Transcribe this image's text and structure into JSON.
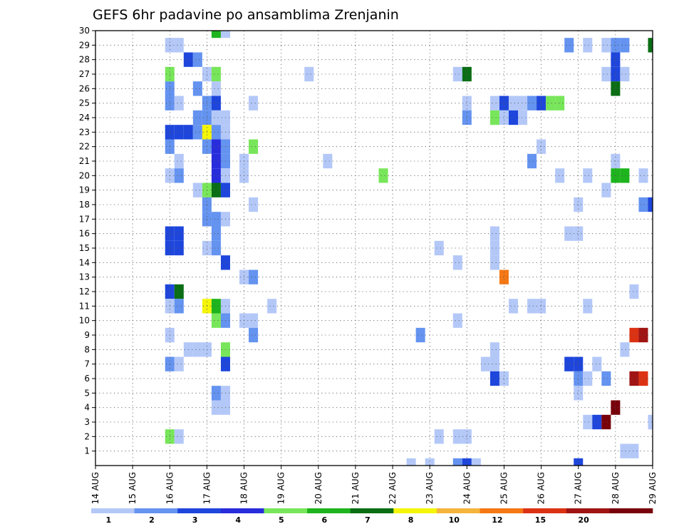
{
  "chart_data": {
    "type": "heatmap",
    "title": "GEFS 6hr padavine po ansamblima Zrenjanin",
    "x_ticks": [
      "14 AUG",
      "15 AUG",
      "16 AUG",
      "17 AUG",
      "18 AUG",
      "19 AUG",
      "20 AUG",
      "21 AUG",
      "22 AUG",
      "23 AUG",
      "24 AUG",
      "25 AUG",
      "26 AUG",
      "27 AUG",
      "28 AUG",
      "29 AUG"
    ],
    "xlim": [
      "14 AUG",
      "29 AUG"
    ],
    "y_ticks": [
      "1",
      "2",
      "3",
      "4",
      "5",
      "6",
      "7",
      "8",
      "9",
      "10",
      "11",
      "12",
      "13",
      "14",
      "15",
      "16",
      "17",
      "18",
      "19",
      "20",
      "21",
      "22",
      "23",
      "24",
      "25",
      "26",
      "27",
      "28",
      "29",
      "30"
    ],
    "ylim": [
      0,
      30
    ],
    "grid": true,
    "colorbar": {
      "labels": [
        "1",
        "2",
        "3",
        "4",
        "5",
        "6",
        "7",
        "8",
        "10",
        "12",
        "15",
        "20"
      ],
      "colors": [
        "#b4c8f8",
        "#6493f0",
        "#1e46dc",
        "#282ddc",
        "#78e65a",
        "#1eb41e",
        "#0a6e14",
        "#f5f50a",
        "#f5b43c",
        "#f57814",
        "#dc3214",
        "#a01414",
        "#78000a"
      ]
    },
    "cells": [
      {
        "x": "16 AUG 00Z",
        "m": 29,
        "lvl": 0
      },
      {
        "x": "16 AUG 06Z",
        "m": 29,
        "lvl": 0
      },
      {
        "x": "16 AUG 12Z",
        "m": 28,
        "lvl": 2
      },
      {
        "x": "16 AUG 18Z",
        "m": 28,
        "lvl": 1
      },
      {
        "x": "16 AUG 00Z",
        "m": 27,
        "lvl": 4
      },
      {
        "x": "16 AUG 00Z",
        "m": 26,
        "lvl": 1
      },
      {
        "x": "16 AUG 18Z",
        "m": 26,
        "lvl": 1
      },
      {
        "x": "16 AUG 00Z",
        "m": 25,
        "lvl": 1
      },
      {
        "x": "16 AUG 06Z",
        "m": 25,
        "lvl": 0
      },
      {
        "x": "16 AUG 00Z",
        "m": 23,
        "lvl": 2
      },
      {
        "x": "16 AUG 06Z",
        "m": 23,
        "lvl": 2
      },
      {
        "x": "16 AUG 12Z",
        "m": 23,
        "lvl": 2
      },
      {
        "x": "16 AUG 18Z",
        "m": 23,
        "lvl": 1
      },
      {
        "x": "16 AUG 00Z",
        "m": 22,
        "lvl": 1
      },
      {
        "x": "16 AUG 06Z",
        "m": 21,
        "lvl": 0
      },
      {
        "x": "16 AUG 00Z",
        "m": 20,
        "lvl": 0
      },
      {
        "x": "16 AUG 06Z",
        "m": 20,
        "lvl": 1
      },
      {
        "x": "16 AUG 00Z",
        "m": 16,
        "lvl": 2
      },
      {
        "x": "16 AUG 06Z",
        "m": 16,
        "lvl": 2
      },
      {
        "x": "16 AUG 00Z",
        "m": 15,
        "lvl": 2
      },
      {
        "x": "16 AUG 06Z",
        "m": 15,
        "lvl": 2
      },
      {
        "x": "16 AUG 00Z",
        "m": 12,
        "lvl": 2
      },
      {
        "x": "16 AUG 06Z",
        "m": 12,
        "lvl": 6
      },
      {
        "x": "16 AUG 00Z",
        "m": 11,
        "lvl": 0
      },
      {
        "x": "16 AUG 06Z",
        "m": 11,
        "lvl": 1
      },
      {
        "x": "16 AUG 00Z",
        "m": 9,
        "lvl": 0
      },
      {
        "x": "16 AUG 12Z",
        "m": 8,
        "lvl": 0
      },
      {
        "x": "16 AUG 18Z",
        "m": 8,
        "lvl": 0
      },
      {
        "x": "17 AUG 00Z",
        "m": 8,
        "lvl": 0
      },
      {
        "x": "16 AUG 00Z",
        "m": 7,
        "lvl": 1
      },
      {
        "x": "16 AUG 06Z",
        "m": 7,
        "lvl": 0
      },
      {
        "x": "16 AUG 00Z",
        "m": 2,
        "lvl": 4
      },
      {
        "x": "16 AUG 06Z",
        "m": 2,
        "lvl": 0
      },
      {
        "x": "17 AUG 06Z",
        "m": 30,
        "lvl": 5
      },
      {
        "x": "17 AUG 12Z",
        "m": 30,
        "lvl": 0
      },
      {
        "x": "17 AUG 00Z",
        "m": 27,
        "lvl": 0
      },
      {
        "x": "17 AUG 06Z",
        "m": 27,
        "lvl": 4
      },
      {
        "x": "17 AUG 06Z",
        "m": 26,
        "lvl": 0
      },
      {
        "x": "17 AUG 00Z",
        "m": 25,
        "lvl": 1
      },
      {
        "x": "17 AUG 06Z",
        "m": 25,
        "lvl": 2
      },
      {
        "x": "16 AUG 18Z",
        "m": 24,
        "lvl": 1
      },
      {
        "x": "17 AUG 00Z",
        "m": 24,
        "lvl": 1
      },
      {
        "x": "17 AUG 06Z",
        "m": 24,
        "lvl": 0
      },
      {
        "x": "17 AUG 12Z",
        "m": 24,
        "lvl": 0
      },
      {
        "x": "17 AUG 00Z",
        "m": 23,
        "lvl": 7
      },
      {
        "x": "17 AUG 06Z",
        "m": 23,
        "lvl": 1
      },
      {
        "x": "17 AUG 12Z",
        "m": 23,
        "lvl": 0
      },
      {
        "x": "17 AUG 00Z",
        "m": 22,
        "lvl": 1
      },
      {
        "x": "17 AUG 06Z",
        "m": 22,
        "lvl": 3
      },
      {
        "x": "17 AUG 12Z",
        "m": 22,
        "lvl": 1
      },
      {
        "x": "17 AUG 06Z",
        "m": 21,
        "lvl": 3
      },
      {
        "x": "17 AUG 12Z",
        "m": 21,
        "lvl": 1
      },
      {
        "x": "17 AUG 06Z",
        "m": 20,
        "lvl": 3
      },
      {
        "x": "17 AUG 12Z",
        "m": 20,
        "lvl": 0
      },
      {
        "x": "16 AUG 18Z",
        "m": 19,
        "lvl": 0
      },
      {
        "x": "17 AUG 00Z",
        "m": 19,
        "lvl": 4
      },
      {
        "x": "17 AUG 06Z",
        "m": 19,
        "lvl": 6
      },
      {
        "x": "17 AUG 12Z",
        "m": 19,
        "lvl": 2
      },
      {
        "x": "17 AUG 00Z",
        "m": 18,
        "lvl": 1
      },
      {
        "x": "17 AUG 00Z",
        "m": 17,
        "lvl": 1
      },
      {
        "x": "17 AUG 06Z",
        "m": 17,
        "lvl": 1
      },
      {
        "x": "17 AUG 12Z",
        "m": 17,
        "lvl": 0
      },
      {
        "x": "17 AUG 06Z",
        "m": 16,
        "lvl": 1
      },
      {
        "x": "17 AUG 00Z",
        "m": 15,
        "lvl": 0
      },
      {
        "x": "17 AUG 06Z",
        "m": 15,
        "lvl": 1
      },
      {
        "x": "17 AUG 12Z",
        "m": 14,
        "lvl": 2
      },
      {
        "x": "17 AUG 00Z",
        "m": 11,
        "lvl": 7
      },
      {
        "x": "17 AUG 06Z",
        "m": 11,
        "lvl": 5
      },
      {
        "x": "17 AUG 12Z",
        "m": 11,
        "lvl": 0
      },
      {
        "x": "17 AUG 06Z",
        "m": 10,
        "lvl": 4
      },
      {
        "x": "17 AUG 12Z",
        "m": 10,
        "lvl": 1
      },
      {
        "x": "17 AUG 12Z",
        "m": 8,
        "lvl": 4
      },
      {
        "x": "17 AUG 12Z",
        "m": 7,
        "lvl": 2
      },
      {
        "x": "17 AUG 06Z",
        "m": 5,
        "lvl": 1
      },
      {
        "x": "17 AUG 12Z",
        "m": 5,
        "lvl": 0
      },
      {
        "x": "17 AUG 06Z",
        "m": 4,
        "lvl": 0
      },
      {
        "x": "17 AUG 12Z",
        "m": 4,
        "lvl": 0
      },
      {
        "x": "18 AUG 06Z",
        "m": 25,
        "lvl": 0
      },
      {
        "x": "18 AUG 06Z",
        "m": 22,
        "lvl": 4
      },
      {
        "x": "18 AUG 00Z",
        "m": 21,
        "lvl": 0
      },
      {
        "x": "18 AUG 00Z",
        "m": 20,
        "lvl": 0
      },
      {
        "x": "18 AUG 06Z",
        "m": 18,
        "lvl": 0
      },
      {
        "x": "18 AUG 00Z",
        "m": 13,
        "lvl": 0
      },
      {
        "x": "18 AUG 06Z",
        "m": 13,
        "lvl": 1
      },
      {
        "x": "18 AUG 18Z",
        "m": 11,
        "lvl": 0
      },
      {
        "x": "18 AUG 00Z",
        "m": 10,
        "lvl": 0
      },
      {
        "x": "18 AUG 06Z",
        "m": 10,
        "lvl": 0
      },
      {
        "x": "18 AUG 06Z",
        "m": 9,
        "lvl": 1
      },
      {
        "x": "19 AUG 18Z",
        "m": 27,
        "lvl": 0
      },
      {
        "x": "20 AUG 06Z",
        "m": 21,
        "lvl": 0
      },
      {
        "x": "21 AUG 18Z",
        "m": 20,
        "lvl": 4
      },
      {
        "x": "22 AUG 18Z",
        "m": 9,
        "lvl": 1
      },
      {
        "x": "23 AUG 06Z",
        "m": 15,
        "lvl": 0
      },
      {
        "x": "23 AUG 06Z",
        "m": 2,
        "lvl": 0
      },
      {
        "x": "22 AUG 12Z",
        "m": 0,
        "lvl": 0
      },
      {
        "x": "23 AUG 00Z",
        "m": 0,
        "lvl": 0
      },
      {
        "x": "23 AUG 18Z",
        "m": 27,
        "lvl": 0
      },
      {
        "x": "24 AUG 00Z",
        "m": 27,
        "lvl": 6
      },
      {
        "x": "24 AUG 00Z",
        "m": 25,
        "lvl": 0
      },
      {
        "x": "24 AUG 00Z",
        "m": 24,
        "lvl": 1
      },
      {
        "x": "23 AUG 18Z",
        "m": 14,
        "lvl": 0
      },
      {
        "x": "23 AUG 18Z",
        "m": 10,
        "lvl": 0
      },
      {
        "x": "23 AUG 18Z",
        "m": 2,
        "lvl": 0
      },
      {
        "x": "24 AUG 00Z",
        "m": 2,
        "lvl": 0
      },
      {
        "x": "23 AUG 18Z",
        "m": 0,
        "lvl": 1
      },
      {
        "x": "24 AUG 00Z",
        "m": 0,
        "lvl": 2
      },
      {
        "x": "24 AUG 06Z",
        "m": 0,
        "lvl": 0
      },
      {
        "x": "24 AUG 18Z",
        "m": 25,
        "lvl": 0
      },
      {
        "x": "25 AUG 00Z",
        "m": 25,
        "lvl": 2
      },
      {
        "x": "25 AUG 06Z",
        "m": 25,
        "lvl": 0
      },
      {
        "x": "25 AUG 12Z",
        "m": 25,
        "lvl": 0
      },
      {
        "x": "24 AUG 18Z",
        "m": 24,
        "lvl": 4
      },
      {
        "x": "25 AUG 00Z",
        "m": 24,
        "lvl": 0
      },
      {
        "x": "25 AUG 06Z",
        "m": 24,
        "lvl": 2
      },
      {
        "x": "25 AUG 12Z",
        "m": 24,
        "lvl": 0
      },
      {
        "x": "25 AUG 18Z",
        "m": 25,
        "lvl": 1
      },
      {
        "x": "26 AUG 00Z",
        "m": 25,
        "lvl": 2
      },
      {
        "x": "26 AUG 06Z",
        "m": 25,
        "lvl": 4
      },
      {
        "x": "26 AUG 12Z",
        "m": 25,
        "lvl": 4
      },
      {
        "x": "26 AUG 00Z",
        "m": 22,
        "lvl": 0
      },
      {
        "x": "25 AUG 18Z",
        "m": 21,
        "lvl": 1
      },
      {
        "x": "26 AUG 12Z",
        "m": 20,
        "lvl": 0
      },
      {
        "x": "24 AUG 18Z",
        "m": 16,
        "lvl": 0
      },
      {
        "x": "24 AUG 18Z",
        "m": 15,
        "lvl": 0
      },
      {
        "x": "24 AUG 18Z",
        "m": 14,
        "lvl": 0
      },
      {
        "x": "25 AUG 00Z",
        "m": 13,
        "lvl": 9
      },
      {
        "x": "25 AUG 06Z",
        "m": 11,
        "lvl": 0
      },
      {
        "x": "25 AUG 18Z",
        "m": 11,
        "lvl": 0
      },
      {
        "x": "26 AUG 00Z",
        "m": 11,
        "lvl": 0
      },
      {
        "x": "24 AUG 18Z",
        "m": 8,
        "lvl": 0
      },
      {
        "x": "24 AUG 12Z",
        "m": 7,
        "lvl": 0
      },
      {
        "x": "24 AUG 18Z",
        "m": 7,
        "lvl": 0
      },
      {
        "x": "24 AUG 18Z",
        "m": 6,
        "lvl": 2
      },
      {
        "x": "25 AUG 00Z",
        "m": 6,
        "lvl": 0
      },
      {
        "x": "26 AUG 18Z",
        "m": 16,
        "lvl": 0
      },
      {
        "x": "27 AUG 00Z",
        "m": 16,
        "lvl": 0
      },
      {
        "x": "27 AUG 06Z",
        "m": 20,
        "lvl": 0
      },
      {
        "x": "26 AUG 18Z",
        "m": 29,
        "lvl": 1
      },
      {
        "x": "27 AUG 06Z",
        "m": 29,
        "lvl": 0
      },
      {
        "x": "27 AUG 18Z",
        "m": 29,
        "lvl": 0
      },
      {
        "x": "28 AUG 00Z",
        "m": 29,
        "lvl": 1
      },
      {
        "x": "28 AUG 06Z",
        "m": 29,
        "lvl": 1
      },
      {
        "x": "27 AUG 18Z",
        "m": 27,
        "lvl": 0
      },
      {
        "x": "28 AUG 00Z",
        "m": 27,
        "lvl": 2
      },
      {
        "x": "28 AUG 06Z",
        "m": 27,
        "lvl": 0
      },
      {
        "x": "28 AUG 00Z",
        "m": 26,
        "lvl": 6
      },
      {
        "x": "28 AUG 00Z",
        "m": 28,
        "lvl": 2
      },
      {
        "x": "29 AUG 00Z",
        "m": 29,
        "lvl": 6
      },
      {
        "x": "28 AUG 00Z",
        "m": 21,
        "lvl": 0
      },
      {
        "x": "28 AUG 00Z",
        "m": 20,
        "lvl": 5
      },
      {
        "x": "28 AUG 06Z",
        "m": 20,
        "lvl": 5
      },
      {
        "x": "28 AUG 18Z",
        "m": 20,
        "lvl": 0
      },
      {
        "x": "27 AUG 18Z",
        "m": 19,
        "lvl": 0
      },
      {
        "x": "27 AUG 00Z",
        "m": 18,
        "lvl": 0
      },
      {
        "x": "28 AUG 18Z",
        "m": 18,
        "lvl": 1
      },
      {
        "x": "29 AUG 00Z",
        "m": 18,
        "lvl": 2
      },
      {
        "x": "28 AUG 12Z",
        "m": 12,
        "lvl": 0
      },
      {
        "x": "27 AUG 06Z",
        "m": 11,
        "lvl": 0
      },
      {
        "x": "28 AUG 12Z",
        "m": 9,
        "lvl": 10
      },
      {
        "x": "28 AUG 18Z",
        "m": 9,
        "lvl": 11
      },
      {
        "x": "28 AUG 06Z",
        "m": 8,
        "lvl": 0
      },
      {
        "x": "26 AUG 18Z",
        "m": 7,
        "lvl": 2
      },
      {
        "x": "27 AUG 00Z",
        "m": 7,
        "lvl": 2
      },
      {
        "x": "27 AUG 12Z",
        "m": 7,
        "lvl": 0
      },
      {
        "x": "27 AUG 00Z",
        "m": 6,
        "lvl": 1
      },
      {
        "x": "27 AUG 06Z",
        "m": 6,
        "lvl": 0
      },
      {
        "x": "27 AUG 18Z",
        "m": 6,
        "lvl": 1
      },
      {
        "x": "28 AUG 12Z",
        "m": 6,
        "lvl": 11
      },
      {
        "x": "28 AUG 18Z",
        "m": 6,
        "lvl": 10
      },
      {
        "x": "27 AUG 00Z",
        "m": 5,
        "lvl": 0
      },
      {
        "x": "28 AUG 00Z",
        "m": 4,
        "lvl": 12
      },
      {
        "x": "27 AUG 06Z",
        "m": 3,
        "lvl": 0
      },
      {
        "x": "27 AUG 12Z",
        "m": 3,
        "lvl": 2
      },
      {
        "x": "27 AUG 18Z",
        "m": 3,
        "lvl": 12
      },
      {
        "x": "29 AUG 00Z",
        "m": 3,
        "lvl": 0
      },
      {
        "x": "28 AUG 06Z",
        "m": 1,
        "lvl": 0
      },
      {
        "x": "28 AUG 12Z",
        "m": 1,
        "lvl": 0
      },
      {
        "x": "27 AUG 00Z",
        "m": 0,
        "lvl": 2
      }
    ]
  }
}
